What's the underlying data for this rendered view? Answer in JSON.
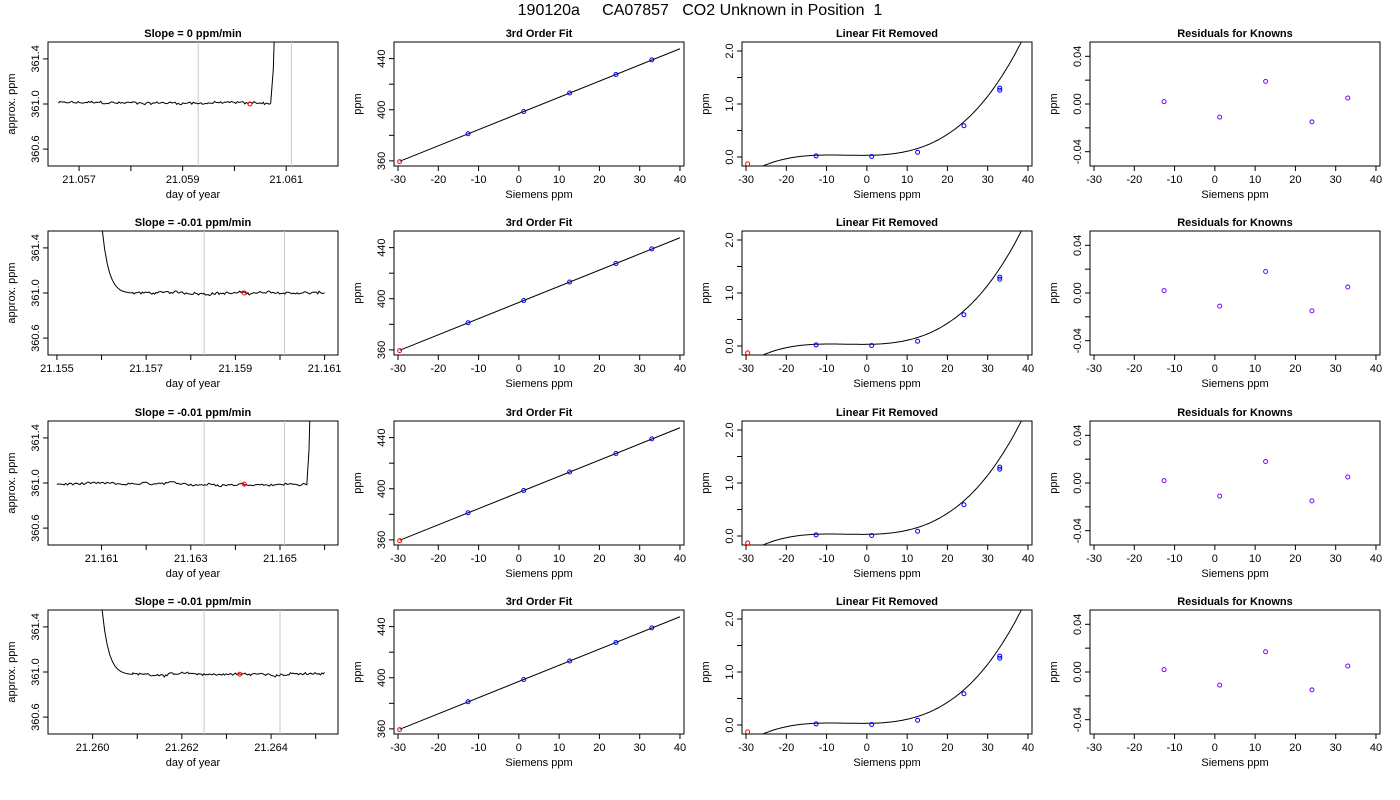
{
  "page": {
    "title": "190120a     CA07857   CO2 Unknown in Position  1"
  },
  "style": {
    "line_color": "#000000",
    "known_point_color": "#0000ff",
    "residual_point_color": "#7f00ff",
    "unknown_point_color": "#ff0000",
    "window_line_color": "#c8c8c8"
  },
  "chart_data": [
    {
      "type": "line",
      "panel": "time-series",
      "row": 1,
      "title": "Slope =  0  ppm/min",
      "xlabel": "day of year",
      "ylabel": "approx. ppm",
      "xlim": [
        21.0564,
        21.062
      ],
      "ylim": [
        360.45,
        361.55
      ],
      "xticks": [
        "21.057",
        "21.059",
        "21.061"
      ],
      "xminor": [
        21.058,
        21.06
      ],
      "yticks": [
        "360.6",
        "361.0",
        "361.4"
      ],
      "window_lines": [
        21.0593,
        21.0611
      ],
      "series_start": 21.0566,
      "series_end": 21.0607,
      "series_level": 361.01,
      "spike_up": true,
      "spike_start": 21.0607,
      "marker": {
        "x": 21.0603,
        "y": 361.0
      }
    },
    {
      "type": "line",
      "panel": "calibration-fit",
      "row": 1,
      "title": "3rd Order Fit",
      "xlabel": "Siemens ppm",
      "ylabel": "ppm",
      "xlim": [
        -31,
        41
      ],
      "ylim": [
        356,
        453
      ],
      "xticks": [
        "-30",
        "-20",
        "-10",
        "0",
        "10",
        "20",
        "30",
        "40"
      ],
      "yticks": [
        "360",
        "400",
        "440"
      ],
      "yminor": [
        380,
        420
      ],
      "knowns": [
        {
          "x": -12.6,
          "y": 381.2
        },
        {
          "x": 1.2,
          "y": 398.6
        },
        {
          "x": 12.6,
          "y": 413.1
        },
        {
          "x": 24.1,
          "y": 427.6
        },
        {
          "x": 33.0,
          "y": 439.0
        }
      ],
      "unknown": {
        "x": -29.6,
        "y": 359.4
      },
      "fit": {
        "slope": 1.2655,
        "intercept": 397.1
      }
    },
    {
      "type": "line",
      "panel": "linear-fit-removed",
      "row": 1,
      "title": "Linear Fit Removed",
      "xlabel": "Siemens ppm",
      "ylabel": "ppm",
      "xlim": [
        -31,
        41
      ],
      "ylim": [
        -0.17,
        2.17
      ],
      "xticks": [
        "-30",
        "-20",
        "-10",
        "0",
        "10",
        "20",
        "30",
        "40"
      ],
      "yticks": [
        "0.0",
        "1.0",
        "2.0"
      ],
      "yminor": [
        0.5,
        1.5
      ],
      "knowns": [
        {
          "x": -12.6,
          "y": 0.02
        },
        {
          "x": 1.2,
          "y": 0.01
        },
        {
          "x": 12.6,
          "y": 0.09
        },
        {
          "x": 24.1,
          "y": 0.59
        },
        {
          "x": 33.0,
          "y": 1.26
        }
      ],
      "knowns_fit": [
        {
          "x": 33.0,
          "y": 1.3
        }
      ],
      "unknown": {
        "x": -29.6,
        "y": -0.13
      },
      "curve": {
        "a": 0.01,
        "b": 0.0,
        "c": 0.00078,
        "d": 2.67e-05
      }
    },
    {
      "type": "scatter",
      "panel": "residuals",
      "row": 1,
      "title": "Residuals for Knowns",
      "xlabel": "Siemens ppm",
      "ylabel": "ppm",
      "xlim": [
        -31,
        41
      ],
      "ylim": [
        -0.052,
        0.052
      ],
      "xticks": [
        "-30",
        "-20",
        "-10",
        "0",
        "10",
        "20",
        "30",
        "40"
      ],
      "yticks": [
        "-0.04",
        "0.00",
        "0.04"
      ],
      "yminor": [
        -0.02,
        0.02
      ],
      "points": [
        {
          "x": -12.6,
          "y": 0.002
        },
        {
          "x": 1.2,
          "y": -0.011
        },
        {
          "x": 12.6,
          "y": 0.019
        },
        {
          "x": 24.1,
          "y": -0.015
        },
        {
          "x": 33.0,
          "y": 0.005
        }
      ]
    },
    {
      "type": "line",
      "panel": "time-series",
      "row": 2,
      "title": "Slope =  -0.01  ppm/min",
      "xlabel": "day of year",
      "ylabel": "approx. ppm",
      "xlim": [
        21.1548,
        21.1613
      ],
      "ylim": [
        360.45,
        361.55
      ],
      "xticks": [
        "21.155",
        "21.157",
        "21.159",
        "21.161"
      ],
      "xminor": [
        21.156,
        21.158,
        21.16
      ],
      "yticks": [
        "360.6",
        "361.0",
        "361.4"
      ],
      "window_lines": [
        21.1583,
        21.1601
      ],
      "series_start": 21.1567,
      "series_end": 21.161,
      "series_level": 361.0,
      "spike_down": true,
      "spike_top_x": 21.1559,
      "marker": {
        "x": 21.1592,
        "y": 361.0
      }
    },
    {
      "type": "line",
      "panel": "calibration-fit",
      "row": 2,
      "title": "3rd Order Fit",
      "xlabel": "Siemens ppm",
      "ylabel": "ppm",
      "xlim": [
        -31,
        41
      ],
      "ylim": [
        356,
        453
      ],
      "xticks": [
        "-30",
        "-20",
        "-10",
        "0",
        "10",
        "20",
        "30",
        "40"
      ],
      "yticks": [
        "360",
        "400",
        "440"
      ],
      "yminor": [
        380,
        420
      ],
      "knowns": [
        {
          "x": -12.6,
          "y": 381.2
        },
        {
          "x": 1.2,
          "y": 398.6
        },
        {
          "x": 12.6,
          "y": 413.1
        },
        {
          "x": 24.1,
          "y": 427.6
        },
        {
          "x": 33.0,
          "y": 439.0
        }
      ],
      "unknown": {
        "x": -29.6,
        "y": 359.4
      },
      "fit": {
        "slope": 1.2655,
        "intercept": 397.1
      }
    },
    {
      "type": "line",
      "panel": "linear-fit-removed",
      "row": 2,
      "title": "Linear Fit Removed",
      "xlabel": "Siemens ppm",
      "ylabel": "ppm",
      "xlim": [
        -31,
        41
      ],
      "ylim": [
        -0.17,
        2.17
      ],
      "xticks": [
        "-30",
        "-20",
        "-10",
        "0",
        "10",
        "20",
        "30",
        "40"
      ],
      "yticks": [
        "0.0",
        "1.0",
        "2.0"
      ],
      "yminor": [
        0.5,
        1.5
      ],
      "knowns": [
        {
          "x": -12.6,
          "y": 0.02
        },
        {
          "x": 1.2,
          "y": 0.01
        },
        {
          "x": 12.6,
          "y": 0.09
        },
        {
          "x": 24.1,
          "y": 0.59
        },
        {
          "x": 33.0,
          "y": 1.26
        }
      ],
      "knowns_fit": [
        {
          "x": 33.0,
          "y": 1.3
        }
      ],
      "unknown": {
        "x": -29.6,
        "y": -0.13
      },
      "curve": {
        "a": 0.01,
        "b": 0.0,
        "c": 0.00078,
        "d": 2.67e-05
      }
    },
    {
      "type": "scatter",
      "panel": "residuals",
      "row": 2,
      "title": "Residuals for Knowns",
      "xlabel": "Siemens ppm",
      "ylabel": "ppm",
      "xlim": [
        -31,
        41
      ],
      "ylim": [
        -0.052,
        0.052
      ],
      "xticks": [
        "-30",
        "-20",
        "-10",
        "0",
        "10",
        "20",
        "30",
        "40"
      ],
      "yticks": [
        "-0.04",
        "0.00",
        "0.04"
      ],
      "yminor": [
        -0.02,
        0.02
      ],
      "points": [
        {
          "x": -12.6,
          "y": 0.002
        },
        {
          "x": 1.2,
          "y": -0.011
        },
        {
          "x": 12.6,
          "y": 0.018
        },
        {
          "x": 24.1,
          "y": -0.015
        },
        {
          "x": 33.0,
          "y": 0.005
        }
      ]
    },
    {
      "type": "line",
      "panel": "time-series",
      "row": 3,
      "title": "Slope =  -0.01  ppm/min",
      "xlabel": "day of year",
      "ylabel": "approx. ppm",
      "xlim": [
        21.1598,
        21.1663
      ],
      "ylim": [
        360.45,
        361.55
      ],
      "xticks": [
        "21.161",
        "21.163",
        "21.165"
      ],
      "xminor": [
        21.162,
        21.164,
        21.166
      ],
      "yticks": [
        "360.6",
        "361.0",
        "361.4"
      ],
      "window_lines": [
        21.1633,
        21.1651
      ],
      "series_start": 21.16,
      "series_end": 21.1656,
      "series_level": 360.99,
      "spike_up": true,
      "spike_start": 21.1656,
      "marker": {
        "x": 21.1642,
        "y": 360.99
      }
    },
    {
      "type": "line",
      "panel": "calibration-fit",
      "row": 3,
      "title": "3rd Order Fit",
      "xlabel": "Siemens ppm",
      "ylabel": "ppm",
      "xlim": [
        -31,
        41
      ],
      "ylim": [
        356,
        453
      ],
      "xticks": [
        "-30",
        "-20",
        "-10",
        "0",
        "10",
        "20",
        "30",
        "40"
      ],
      "yticks": [
        "360",
        "400",
        "440"
      ],
      "yminor": [
        380,
        420
      ],
      "knowns": [
        {
          "x": -12.6,
          "y": 381.2
        },
        {
          "x": 1.2,
          "y": 398.6
        },
        {
          "x": 12.6,
          "y": 413.1
        },
        {
          "x": 24.1,
          "y": 427.6
        },
        {
          "x": 33.0,
          "y": 439.0
        }
      ],
      "unknown": {
        "x": -29.6,
        "y": 359.4
      },
      "fit": {
        "slope": 1.2655,
        "intercept": 397.1
      }
    },
    {
      "type": "line",
      "panel": "linear-fit-removed",
      "row": 3,
      "title": "Linear Fit Removed",
      "xlabel": "Siemens ppm",
      "ylabel": "ppm",
      "xlim": [
        -31,
        41
      ],
      "ylim": [
        -0.17,
        2.17
      ],
      "xticks": [
        "-30",
        "-20",
        "-10",
        "0",
        "10",
        "20",
        "30",
        "40"
      ],
      "yticks": [
        "0.0",
        "1.0",
        "2.0"
      ],
      "yminor": [
        0.5,
        1.5
      ],
      "knowns": [
        {
          "x": -12.6,
          "y": 0.02
        },
        {
          "x": 1.2,
          "y": 0.01
        },
        {
          "x": 12.6,
          "y": 0.09
        },
        {
          "x": 24.1,
          "y": 0.59
        },
        {
          "x": 33.0,
          "y": 1.26
        }
      ],
      "knowns_fit": [
        {
          "x": 33.0,
          "y": 1.3
        }
      ],
      "unknown": {
        "x": -29.6,
        "y": -0.13
      },
      "curve": {
        "a": 0.01,
        "b": 0.0,
        "c": 0.00078,
        "d": 2.67e-05
      }
    },
    {
      "type": "scatter",
      "panel": "residuals",
      "row": 3,
      "title": "Residuals for Knowns",
      "xlabel": "Siemens ppm",
      "ylabel": "ppm",
      "xlim": [
        -31,
        41
      ],
      "ylim": [
        -0.052,
        0.052
      ],
      "xticks": [
        "-30",
        "-20",
        "-10",
        "0",
        "10",
        "20",
        "30",
        "40"
      ],
      "yticks": [
        "-0.04",
        "0.00",
        "0.04"
      ],
      "yminor": [
        -0.02,
        0.02
      ],
      "points": [
        {
          "x": -12.6,
          "y": 0.002
        },
        {
          "x": 1.2,
          "y": -0.011
        },
        {
          "x": 12.6,
          "y": 0.018
        },
        {
          "x": 24.1,
          "y": -0.015
        },
        {
          "x": 33.0,
          "y": 0.005
        }
      ]
    },
    {
      "type": "line",
      "panel": "time-series",
      "row": 4,
      "title": "Slope =  -0.01  ppm/min",
      "xlabel": "day of year",
      "ylabel": "approx. ppm",
      "xlim": [
        21.259,
        21.2655
      ],
      "ylim": [
        360.45,
        361.55
      ],
      "xticks": [
        "21.260",
        "21.262",
        "21.264"
      ],
      "xminor": [
        21.261,
        21.263,
        21.265
      ],
      "yticks": [
        "360.6",
        "361.0",
        "361.4"
      ],
      "window_lines": [
        21.2625,
        21.2642
      ],
      "series_start": 21.2609,
      "series_end": 21.2652,
      "series_level": 360.98,
      "spike_down": true,
      "spike_top_x": 21.2601,
      "marker": {
        "x": 21.2633,
        "y": 360.98
      }
    },
    {
      "type": "line",
      "panel": "calibration-fit",
      "row": 4,
      "title": "3rd Order Fit",
      "xlabel": "Siemens ppm",
      "ylabel": "ppm",
      "xlim": [
        -31,
        41
      ],
      "ylim": [
        356,
        453
      ],
      "xticks": [
        "-30",
        "-20",
        "-10",
        "0",
        "10",
        "20",
        "30",
        "40"
      ],
      "yticks": [
        "360",
        "400",
        "440"
      ],
      "yminor": [
        380,
        420
      ],
      "knowns": [
        {
          "x": -12.6,
          "y": 381.2
        },
        {
          "x": 1.2,
          "y": 398.6
        },
        {
          "x": 12.6,
          "y": 413.1
        },
        {
          "x": 24.1,
          "y": 427.6
        },
        {
          "x": 33.0,
          "y": 439.0
        }
      ],
      "unknown": {
        "x": -29.6,
        "y": 359.4
      },
      "fit": {
        "slope": 1.2655,
        "intercept": 397.1
      }
    },
    {
      "type": "line",
      "panel": "linear-fit-removed",
      "row": 4,
      "title": "Linear Fit Removed",
      "xlabel": "Siemens ppm",
      "ylabel": "ppm",
      "xlim": [
        -31,
        41
      ],
      "ylim": [
        -0.17,
        2.17
      ],
      "xticks": [
        "-30",
        "-20",
        "-10",
        "0",
        "10",
        "20",
        "30",
        "40"
      ],
      "yticks": [
        "0.0",
        "1.0",
        "2.0"
      ],
      "yminor": [
        0.5,
        1.5
      ],
      "knowns": [
        {
          "x": -12.6,
          "y": 0.02
        },
        {
          "x": 1.2,
          "y": 0.01
        },
        {
          "x": 12.6,
          "y": 0.09
        },
        {
          "x": 24.1,
          "y": 0.59
        },
        {
          "x": 33.0,
          "y": 1.26
        }
      ],
      "knowns_fit": [
        {
          "x": 33.0,
          "y": 1.3
        }
      ],
      "unknown": {
        "x": -29.6,
        "y": -0.13
      },
      "curve": {
        "a": 0.01,
        "b": 0.0,
        "c": 0.00078,
        "d": 2.67e-05
      }
    },
    {
      "type": "scatter",
      "panel": "residuals",
      "row": 4,
      "title": "Residuals for Knowns",
      "xlabel": "Siemens ppm",
      "ylabel": "ppm",
      "xlim": [
        -31,
        41
      ],
      "ylim": [
        -0.052,
        0.052
      ],
      "xticks": [
        "-30",
        "-20",
        "-10",
        "0",
        "10",
        "20",
        "30",
        "40"
      ],
      "yticks": [
        "-0.04",
        "0.00",
        "0.04"
      ],
      "yminor": [
        -0.02,
        0.02
      ],
      "points": [
        {
          "x": -12.6,
          "y": 0.002
        },
        {
          "x": 1.2,
          "y": -0.011
        },
        {
          "x": 12.6,
          "y": 0.017
        },
        {
          "x": 24.1,
          "y": -0.015
        },
        {
          "x": 33.0,
          "y": 0.005
        }
      ]
    }
  ]
}
